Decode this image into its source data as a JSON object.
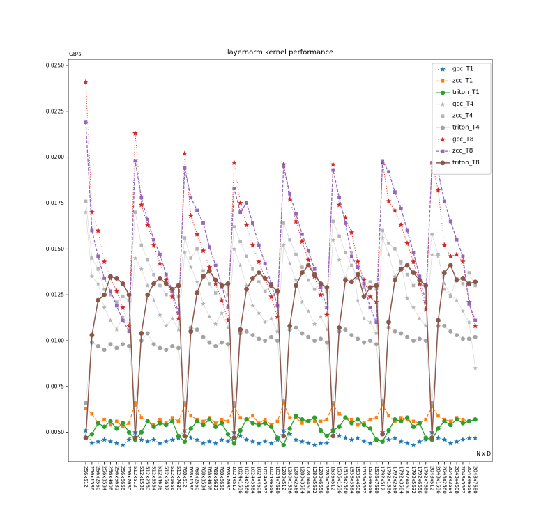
{
  "chart_data": {
    "type": "line",
    "title": "layernorm kernel performance",
    "ylabel": "GB/s",
    "xlabel": "N x D",
    "grid": false,
    "legend_position": "upper right",
    "ylim": [
      0.0034,
      0.0253
    ],
    "yticks": [
      0.005,
      0.0075,
      0.01,
      0.0125,
      0.015,
      0.0175,
      0.02,
      0.0225,
      0.025
    ],
    "yticklabels": [
      "0.0050",
      "0.0075",
      "0.0100",
      "0.0125",
      "0.0150",
      "0.0175",
      "0.0200",
      "0.0225",
      "0.0250"
    ],
    "categories": [
      "256x512",
      "256x1536",
      "256x2560",
      "256x3584",
      "256x4608",
      "256x5632",
      "256x6656",
      "256x7680",
      "512x512",
      "512x1536",
      "512x2560",
      "512x3584",
      "512x4608",
      "512x5632",
      "512x6656",
      "512x7680",
      "768x512",
      "768x1536",
      "768x2560",
      "768x3584",
      "768x4608",
      "768x5632",
      "768x6656",
      "768x7680",
      "1024x512",
      "1024x1536",
      "1024x2560",
      "1024x3584",
      "1024x4608",
      "1024x5632",
      "1024x6656",
      "1024x7680",
      "1280x512",
      "1280x1536",
      "1280x2560",
      "1280x3584",
      "1280x4608",
      "1280x5632",
      "1280x6656",
      "1280x7680",
      "1536x512",
      "1536x1536",
      "1536x2560",
      "1536x3584",
      "1536x4608",
      "1536x5632",
      "1536x6656",
      "1536x7680",
      "1792x512",
      "1792x1536",
      "1792x2560",
      "1792x3584",
      "1792x4608",
      "1792x5632",
      "1792x6656",
      "1792x7680",
      "2048x512",
      "2048x1536",
      "2048x2560",
      "2048x3584",
      "2048x4608",
      "2048x5632",
      "2048x6656",
      "2048x7680"
    ],
    "series": [
      {
        "name": "gcc_T1",
        "color": "#1f77b4",
        "line": "dotted",
        "marker": "star",
        "marker_size": 3.2,
        "line_width": 1.0,
        "values": [
          0.0051,
          0.0044,
          0.0045,
          0.0046,
          0.0045,
          0.0044,
          0.0043,
          0.0046,
          0.005,
          0.0046,
          0.0045,
          0.0046,
          0.0044,
          0.0045,
          0.0046,
          0.0047,
          0.0051,
          0.0047,
          0.0046,
          0.0044,
          0.0045,
          0.0044,
          0.0046,
          0.0045,
          0.005,
          0.0048,
          0.0046,
          0.0045,
          0.0044,
          0.0045,
          0.0044,
          0.0046,
          0.0051,
          0.0049,
          0.0046,
          0.0045,
          0.0044,
          0.0043,
          0.0044,
          0.0044,
          0.0051,
          0.0048,
          0.0047,
          0.0046,
          0.0047,
          0.0045,
          0.0044,
          0.0046,
          0.005,
          0.0046,
          0.0047,
          0.0045,
          0.0044,
          0.0043,
          0.0045,
          0.0046,
          0.005,
          0.0047,
          0.0046,
          0.0044,
          0.0045,
          0.0046,
          0.0047,
          0.0047
        ]
      },
      {
        "name": "zcc_T1",
        "color": "#ff7f0e",
        "line": "dashed",
        "marker": "square",
        "marker_size": 4.6,
        "line_width": 1.2,
        "values": [
          0.0063,
          0.006,
          0.0055,
          0.0057,
          0.0054,
          0.0056,
          0.0053,
          0.0055,
          0.0066,
          0.0058,
          0.0056,
          0.0054,
          0.0057,
          0.0055,
          0.0058,
          0.0056,
          0.0065,
          0.0059,
          0.0057,
          0.0056,
          0.0058,
          0.0055,
          0.0057,
          0.0056,
          0.0064,
          0.0058,
          0.0057,
          0.0059,
          0.0055,
          0.0057,
          0.0054,
          0.0056,
          0.0066,
          0.0058,
          0.0058,
          0.0055,
          0.0056,
          0.0056,
          0.0056,
          0.0057,
          0.0065,
          0.006,
          0.0058,
          0.0057,
          0.0054,
          0.0055,
          0.0057,
          0.0058,
          0.0065,
          0.0059,
          0.0056,
          0.0058,
          0.0057,
          0.0056,
          0.0055,
          0.0057,
          0.0064,
          0.0059,
          0.0057,
          0.0056,
          0.0058,
          0.0057,
          0.0056,
          0.0057
        ]
      },
      {
        "name": "triton_T1",
        "color": "#2ca02c",
        "line": "solid",
        "marker": "circle",
        "marker_size": 3.2,
        "line_width": 1.3,
        "values": [
          0.0047,
          0.0049,
          0.0055,
          0.0053,
          0.0056,
          0.0052,
          0.0055,
          0.005,
          0.0046,
          0.005,
          0.0056,
          0.0053,
          0.0055,
          0.0054,
          0.0056,
          0.0048,
          0.0045,
          0.0052,
          0.0056,
          0.0054,
          0.0057,
          0.0053,
          0.0055,
          0.0049,
          0.0044,
          0.0051,
          0.0057,
          0.0055,
          0.0054,
          0.0055,
          0.0053,
          0.0047,
          0.0043,
          0.0052,
          0.0059,
          0.0057,
          0.0056,
          0.0058,
          0.0051,
          0.0048,
          0.0051,
          0.0053,
          0.0058,
          0.0055,
          0.0057,
          0.0054,
          0.0052,
          0.0046,
          0.0045,
          0.0051,
          0.0057,
          0.0056,
          0.0058,
          0.0053,
          0.0055,
          0.0047,
          0.0046,
          0.0052,
          0.0056,
          0.0054,
          0.0057,
          0.0055,
          0.0056,
          0.0057
        ]
      },
      {
        "name": "gcc_T4",
        "color": "#b5b5b5",
        "line": "faint",
        "marker": "star",
        "marker_size": 2.7,
        "line_width": 0.8,
        "values": [
          0.017,
          0.0135,
          0.0131,
          0.0118,
          0.0111,
          0.0106,
          0.0113,
          0.0108,
          0.0145,
          0.0139,
          0.013,
          0.0122,
          0.0114,
          0.0108,
          0.0112,
          0.0106,
          0.0148,
          0.014,
          0.0132,
          0.012,
          0.0113,
          0.0109,
          0.0115,
          0.0107,
          0.015,
          0.0141,
          0.013,
          0.0119,
          0.0115,
          0.011,
          0.0112,
          0.0105,
          0.0152,
          0.0142,
          0.0133,
          0.0121,
          0.0116,
          0.0109,
          0.0113,
          0.0106,
          0.0155,
          0.0144,
          0.0134,
          0.0148,
          0.0122,
          0.0112,
          0.011,
          0.0104,
          0.0156,
          0.0147,
          0.0135,
          0.0142,
          0.0123,
          0.0118,
          0.0112,
          0.0108,
          0.0147,
          0.0146,
          0.0131,
          0.0125,
          0.0122,
          0.0116,
          0.011,
          0.0085
        ]
      },
      {
        "name": "zcc_T4",
        "color": "#b5b5b5",
        "line": "faint",
        "marker": "square",
        "marker_size": 4.6,
        "line_width": 0.8,
        "values": [
          0.0176,
          0.0145,
          0.0139,
          0.0128,
          0.0125,
          0.0121,
          0.0124,
          0.0122,
          0.017,
          0.0152,
          0.0144,
          0.0136,
          0.013,
          0.0125,
          0.0128,
          0.0124,
          0.0156,
          0.0145,
          0.015,
          0.0138,
          0.0131,
          0.0126,
          0.0129,
          0.0125,
          0.0162,
          0.0154,
          0.0146,
          0.0139,
          0.0132,
          0.0127,
          0.013,
          0.0126,
          0.0164,
          0.0155,
          0.0147,
          0.014,
          0.0133,
          0.0128,
          0.0131,
          0.0127,
          0.0165,
          0.0157,
          0.0148,
          0.0141,
          0.0134,
          0.0129,
          0.0132,
          0.0128,
          0.016,
          0.0153,
          0.015,
          0.0143,
          0.0136,
          0.013,
          0.0133,
          0.0129,
          0.0158,
          0.0147,
          0.0128,
          0.0124,
          0.0134,
          0.0131,
          0.0137,
          0.013
        ]
      },
      {
        "name": "triton_T4",
        "color": "#a3a3a3",
        "line": "faint",
        "marker": "circle",
        "marker_size": 3.0,
        "line_width": 0.8,
        "values": [
          0.0066,
          0.0099,
          0.0097,
          0.0095,
          0.0098,
          0.0096,
          0.0098,
          0.0097,
          0.0065,
          0.01,
          0.0104,
          0.0098,
          0.0096,
          0.0095,
          0.0097,
          0.0096,
          0.0066,
          0.0107,
          0.0106,
          0.0102,
          0.0099,
          0.0097,
          0.0099,
          0.0098,
          0.0066,
          0.0104,
          0.0105,
          0.0103,
          0.0101,
          0.01,
          0.0102,
          0.01,
          0.0067,
          0.0106,
          0.0107,
          0.0104,
          0.0102,
          0.01,
          0.0101,
          0.0099,
          0.0066,
          0.0105,
          0.0106,
          0.0103,
          0.0101,
          0.0099,
          0.01,
          0.0098,
          0.0067,
          0.0107,
          0.0105,
          0.0104,
          0.0102,
          0.01,
          0.0101,
          0.01,
          0.0066,
          0.0108,
          0.0108,
          0.0105,
          0.0103,
          0.0101,
          0.0101,
          0.0102
        ]
      },
      {
        "name": "gcc_T8",
        "color": "#d62728",
        "line": "dotted",
        "marker": "star",
        "marker_size": 3.4,
        "line_width": 1.0,
        "values": [
          0.0241,
          0.017,
          0.016,
          0.0143,
          0.0134,
          0.0127,
          0.0118,
          0.0108,
          0.0213,
          0.0174,
          0.0163,
          0.0152,
          0.0142,
          0.0133,
          0.0124,
          0.0112,
          0.0202,
          0.0168,
          0.0158,
          0.0149,
          0.014,
          0.0131,
          0.0122,
          0.0111,
          0.0197,
          0.0175,
          0.0163,
          0.0152,
          0.0143,
          0.0134,
          0.0124,
          0.0113,
          0.0196,
          0.0177,
          0.0165,
          0.0154,
          0.0144,
          0.0135,
          0.0125,
          0.0114,
          0.0196,
          0.0174,
          0.0167,
          0.0159,
          0.0143,
          0.0133,
          0.0124,
          0.0121,
          0.0197,
          0.0176,
          0.0171,
          0.0163,
          0.0153,
          0.0143,
          0.0131,
          0.0117,
          0.0197,
          0.0182,
          0.0152,
          0.0146,
          0.0147,
          0.0143,
          0.0121,
          0.0108
        ]
      },
      {
        "name": "zcc_T8",
        "color": "#9467bd",
        "line": "dashed",
        "marker": "square",
        "marker_size": 4.8,
        "line_width": 1.3,
        "values": [
          0.0219,
          0.016,
          0.0146,
          0.0134,
          0.0127,
          0.0119,
          0.0111,
          0.0105,
          0.0198,
          0.0178,
          0.0166,
          0.0155,
          0.0147,
          0.0136,
          0.0127,
          0.0115,
          0.0194,
          0.0178,
          0.0171,
          0.0164,
          0.0151,
          0.0141,
          0.013,
          0.0118,
          0.0183,
          0.017,
          0.0175,
          0.0164,
          0.0152,
          0.0142,
          0.0131,
          0.0119,
          0.0195,
          0.018,
          0.0169,
          0.0158,
          0.0149,
          0.0139,
          0.0129,
          0.0118,
          0.0193,
          0.0178,
          0.0164,
          0.0146,
          0.014,
          0.0131,
          0.0118,
          0.011,
          0.0198,
          0.0192,
          0.0181,
          0.0172,
          0.016,
          0.0148,
          0.0135,
          0.0121,
          0.0197,
          0.0192,
          0.0176,
          0.0165,
          0.0155,
          0.0146,
          0.012,
          0.0111
        ]
      },
      {
        "name": "triton_T8",
        "color": "#8c564b",
        "line": "solid",
        "marker": "circle",
        "marker_size": 3.4,
        "line_width": 1.5,
        "values": [
          0.0047,
          0.0103,
          0.0122,
          0.0125,
          0.0135,
          0.0134,
          0.0131,
          0.0125,
          0.0047,
          0.0104,
          0.0125,
          0.0131,
          0.0134,
          0.0131,
          0.0128,
          0.013,
          0.0048,
          0.0105,
          0.0126,
          0.0135,
          0.0138,
          0.0133,
          0.013,
          0.0131,
          0.0047,
          0.0106,
          0.0128,
          0.0134,
          0.0137,
          0.0134,
          0.013,
          0.0127,
          0.0048,
          0.0108,
          0.013,
          0.0137,
          0.0141,
          0.0136,
          0.0131,
          0.0129,
          0.0048,
          0.0107,
          0.0133,
          0.0132,
          0.0136,
          0.0124,
          0.0129,
          0.013,
          0.0049,
          0.011,
          0.0133,
          0.0139,
          0.0141,
          0.0137,
          0.0133,
          0.013,
          0.0047,
          0.0111,
          0.0137,
          0.0141,
          0.0133,
          0.0134,
          0.0131,
          0.0132
        ]
      }
    ]
  },
  "colors": {
    "axis": "#000000",
    "faint_line": "#dcdcdc",
    "legend_border": "#cccccc",
    "background": "#ffffff"
  }
}
